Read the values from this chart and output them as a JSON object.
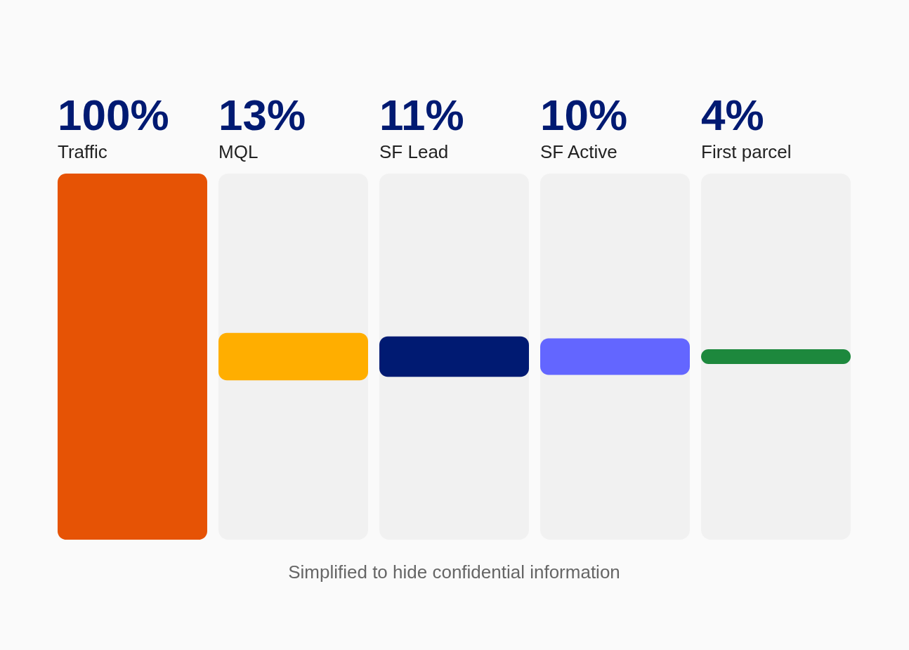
{
  "chart_data": {
    "type": "other",
    "categories": [
      "Traffic",
      "MQL",
      "SF Lead",
      "SF Active",
      "First parcel"
    ],
    "values": [
      100,
      13,
      11,
      10,
      4
    ],
    "value_labels": [
      "100%",
      "13%",
      "11%",
      "10%",
      "4%"
    ],
    "colors": [
      "#e65305",
      "#ffae00",
      "#001a72",
      "#6366ff",
      "#1d883d"
    ],
    "annotations": [
      "Simplified to hide confidential information"
    ]
  }
}
